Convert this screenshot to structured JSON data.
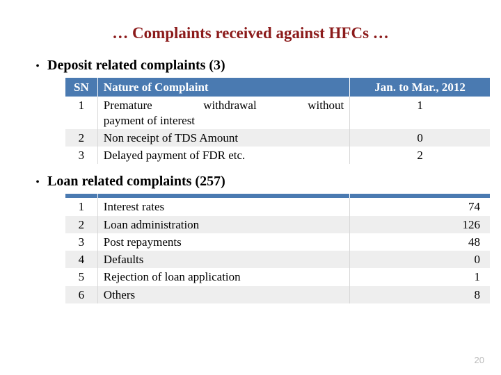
{
  "title": "… Complaints received against HFCs …",
  "section1": {
    "heading": "Deposit related complaints (3)",
    "header": {
      "sn": "SN",
      "nature": "Nature of Complaint",
      "period": "Jan. to Mar., 2012"
    },
    "rows": [
      {
        "sn": "1",
        "nature_l1": "Premature withdrawal without",
        "nature_l2": "payment of interest",
        "val": "1"
      },
      {
        "sn": "2",
        "nature": "Non receipt of TDS Amount",
        "val": "0"
      },
      {
        "sn": "3",
        "nature": "Delayed payment of FDR etc.",
        "val": "2"
      }
    ]
  },
  "section2": {
    "heading": "Loan related complaints (257)",
    "rows": [
      {
        "sn": "1",
        "nature": "Interest rates",
        "val": "74"
      },
      {
        "sn": "2",
        "nature": "Loan administration",
        "val": "126"
      },
      {
        "sn": "3",
        "nature": "Post repayments",
        "val": "48"
      },
      {
        "sn": "4",
        "nature": "Defaults",
        "val": "0"
      },
      {
        "sn": "5",
        "nature": "Rejection of loan application",
        "val": "1"
      },
      {
        "sn": "6",
        "nature": "Others",
        "val": "8"
      }
    ]
  },
  "slide_number": "20"
}
